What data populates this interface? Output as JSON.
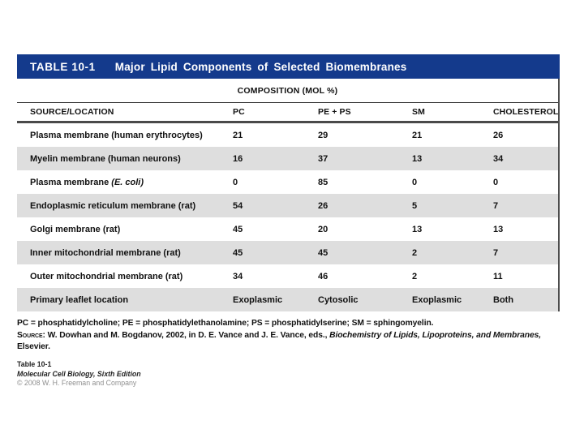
{
  "table": {
    "tag": "TABLE 10-1",
    "title": "Major Lipid Components of Selected Biomembranes",
    "composition_label": "COMPOSITION (MOL %)",
    "columns": [
      "SOURCE/LOCATION",
      "PC",
      "PE + PS",
      "SM",
      "CHOLESTEROL"
    ],
    "rows": [
      {
        "source": "Plasma membrane (human erythrocytes)",
        "values": [
          "21",
          "29",
          "21",
          "26"
        ]
      },
      {
        "source": "Myelin membrane (human neurons)",
        "values": [
          "16",
          "37",
          "13",
          "34"
        ]
      },
      {
        "source": "Plasma membrane ",
        "source_italic": "(E. coli)",
        "values": [
          "0",
          "85",
          "0",
          "0"
        ]
      },
      {
        "source": "Endoplasmic reticulum membrane (rat)",
        "values": [
          "54",
          "26",
          "5",
          "7"
        ]
      },
      {
        "source": "Golgi membrane (rat)",
        "values": [
          "45",
          "20",
          "13",
          "13"
        ]
      },
      {
        "source": "Inner mitochondrial membrane (rat)",
        "values": [
          "45",
          "45",
          "2",
          "7"
        ]
      },
      {
        "source": "Outer mitochondrial membrane (rat)",
        "values": [
          "34",
          "46",
          "2",
          "11"
        ]
      },
      {
        "source": "Primary leaflet location",
        "values": [
          "Exoplasmic",
          "Cytosolic",
          "Exoplasmic",
          "Both"
        ]
      }
    ],
    "colors": {
      "header_bg": "#143a8c",
      "alt_row_bg": "#dedede",
      "rule": "#4a4a4a"
    }
  },
  "footnotes": {
    "abbreviations": "PC = phosphatidylcholine; PE = phosphatidylethanolamine; PS = phosphatidylserine; SM = sphingomyelin.",
    "source_label": "Source:",
    "source_text": " W. Dowhan and M. Bogdanov, 2002, in D. E. Vance and J. E. Vance, eds., ",
    "source_title_italic": "Biochemistry of Lipids, Lipoproteins, and Membranes,",
    "source_suffix": "Elsevier."
  },
  "credits": {
    "table_ref": "Table 10-1",
    "book": "Molecular Cell Biology, Sixth Edition",
    "copyright": "© 2008 W. H. Freeman and Company"
  }
}
